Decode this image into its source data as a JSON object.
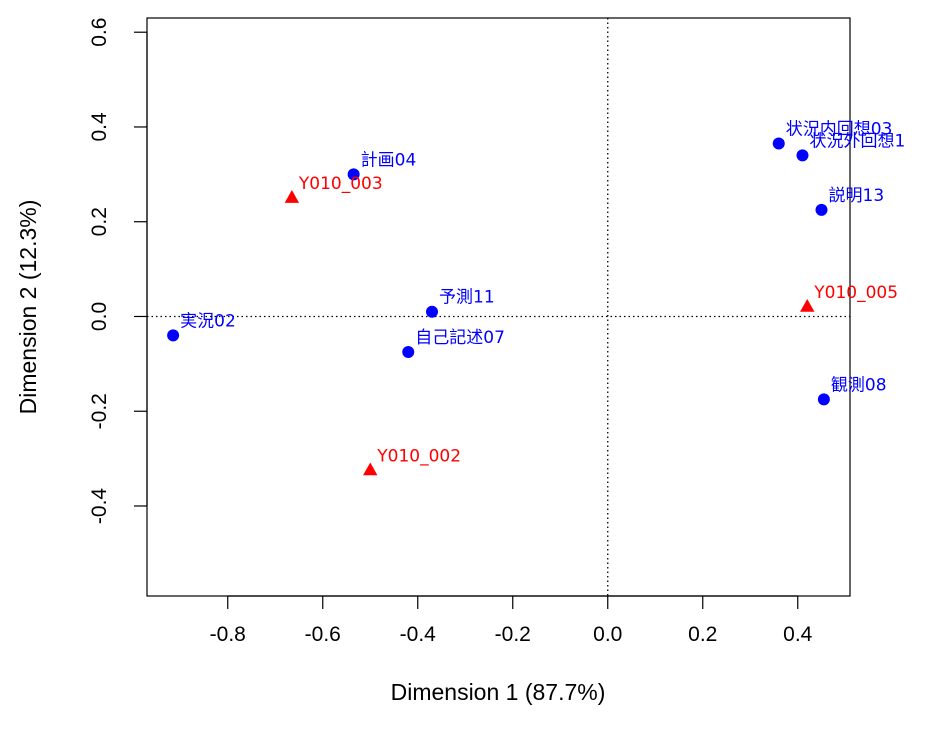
{
  "chart_data": {
    "type": "scatter",
    "xlabel": "Dimension 1 (87.7%)",
    "ylabel": "Dimension 2 (12.3%)",
    "xlim": [
      -0.97,
      0.51
    ],
    "ylim": [
      -0.59,
      0.63
    ],
    "xticks": [
      -0.8,
      -0.6,
      -0.4,
      -0.2,
      0.0,
      0.2,
      0.4
    ],
    "xtick_labels": [
      "-0.8",
      "-0.6",
      "-0.4",
      "-0.2",
      "0.0",
      "0.2",
      "0.4"
    ],
    "yticks": [
      -0.4,
      -0.2,
      0.0,
      0.2,
      0.4,
      0.6
    ],
    "ytick_labels": [
      "-0.4",
      "-0.2",
      "0.0",
      "0.2",
      "0.4",
      "0.6"
    ],
    "reference_lines": {
      "x": 0.0,
      "y": 0.0,
      "style": "dotted"
    },
    "grid": false,
    "colors": {
      "categories": "#0000ff",
      "documents": "#ff0000",
      "axis": "#000000"
    },
    "series": [
      {
        "marker": "circle",
        "color": "#0000ff",
        "points": [
          {
            "label": "実況02",
            "x": -0.915,
            "y": -0.04
          },
          {
            "label": "計画04",
            "x": -0.535,
            "y": 0.3
          },
          {
            "label": "予測11",
            "x": -0.37,
            "y": 0.01
          },
          {
            "label": "自己記述07",
            "x": -0.42,
            "y": -0.075
          },
          {
            "label": "状況内回想03",
            "x": 0.36,
            "y": 0.365
          },
          {
            "label": "状況外回想1",
            "x": 0.41,
            "y": 0.34
          },
          {
            "label": "説明13",
            "x": 0.45,
            "y": 0.225
          },
          {
            "label": "観測08",
            "x": 0.455,
            "y": -0.175
          }
        ]
      },
      {
        "marker": "triangle",
        "color": "#ff0000",
        "points": [
          {
            "label": "Y010_003",
            "x": -0.665,
            "y": 0.25
          },
          {
            "label": "Y010_002",
            "x": -0.5,
            "y": -0.325
          },
          {
            "label": "Y010_005",
            "x": 0.42,
            "y": 0.02
          }
        ]
      }
    ]
  }
}
